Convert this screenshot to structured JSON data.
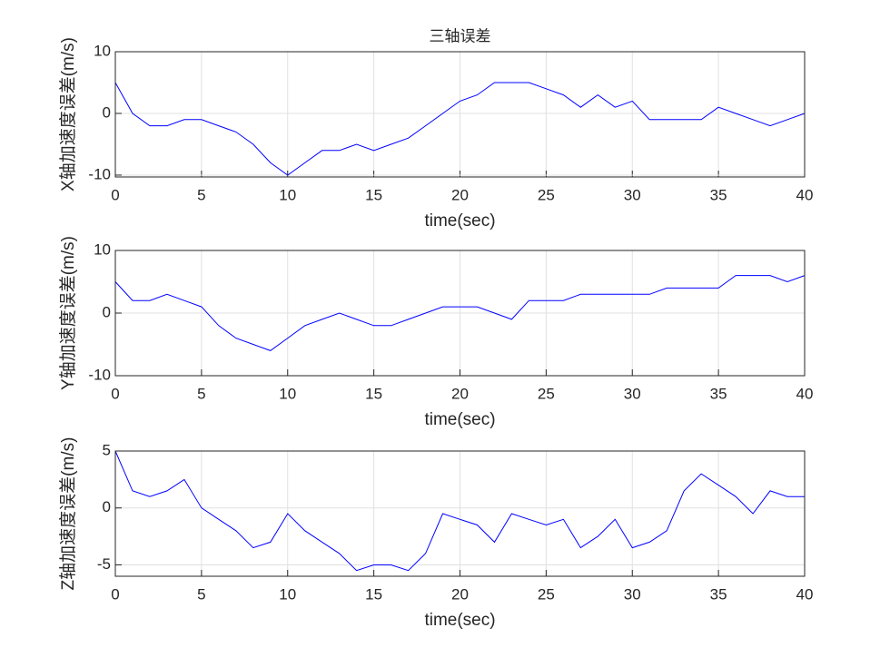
{
  "chart_data": [
    {
      "type": "line",
      "title": "三轴误差",
      "ylabel": "X轴加速度误差(m/s)",
      "xlabel": "time(sec)",
      "color": "#0000ff",
      "grid": true,
      "x": [
        0,
        1,
        2,
        3,
        4,
        5,
        6,
        7,
        8,
        9,
        10,
        11,
        12,
        13,
        14,
        15,
        16,
        17,
        18,
        19,
        20,
        21,
        22,
        23,
        24,
        25,
        26,
        27,
        28,
        29,
        30,
        31,
        32,
        33,
        34,
        35,
        36,
        37,
        38,
        39,
        40
      ],
      "values": [
        5,
        0,
        -2,
        -2,
        -1,
        -1,
        -2,
        -3,
        -5,
        -8,
        -10,
        -8,
        -6,
        -6,
        -5,
        -6,
        -5,
        -4,
        -2,
        0,
        2,
        3,
        5,
        5,
        5,
        4,
        3,
        1,
        3,
        1,
        2,
        -1,
        -1,
        -1,
        -1,
        1,
        0,
        -1,
        -2,
        -1,
        0
      ],
      "xlim": [
        0,
        40
      ],
      "xticks": [
        0,
        5,
        10,
        15,
        20,
        25,
        30,
        35,
        40
      ],
      "ylim": [
        -10.3,
        10
      ],
      "yticks": [
        -10,
        0,
        10
      ]
    },
    {
      "type": "line",
      "ylabel": "Y轴加速度误差(m/s)",
      "xlabel": "time(sec)",
      "color": "#0000ff",
      "grid": true,
      "x": [
        0,
        1,
        2,
        3,
        4,
        5,
        6,
        7,
        8,
        9,
        10,
        11,
        12,
        13,
        14,
        15,
        16,
        17,
        18,
        19,
        20,
        21,
        22,
        23,
        24,
        25,
        26,
        27,
        28,
        29,
        30,
        31,
        32,
        33,
        34,
        35,
        36,
        37,
        38,
        39,
        40
      ],
      "values": [
        5,
        2,
        2,
        3,
        2,
        1,
        -2,
        -4,
        -5,
        -6,
        -4,
        -2,
        -1,
        0,
        -1,
        -2,
        -2,
        -1,
        0,
        1,
        1,
        1,
        0,
        -1,
        2,
        2,
        2,
        3,
        3,
        3,
        3,
        3,
        4,
        4,
        4,
        4,
        6,
        6,
        6,
        5,
        6
      ],
      "xlim": [
        0,
        40
      ],
      "xticks": [
        0,
        5,
        10,
        15,
        20,
        25,
        30,
        35,
        40
      ],
      "ylim": [
        -10,
        10
      ],
      "yticks": [
        -10,
        0,
        10
      ]
    },
    {
      "type": "line",
      "ylabel": "Z轴加速度误差(m/s)",
      "xlabel": "time(sec)",
      "color": "#0000ff",
      "grid": true,
      "x": [
        0,
        1,
        2,
        3,
        4,
        5,
        6,
        7,
        8,
        9,
        10,
        11,
        12,
        13,
        14,
        15,
        16,
        17,
        18,
        19,
        20,
        21,
        22,
        23,
        24,
        25,
        26,
        27,
        28,
        29,
        30,
        31,
        32,
        33,
        34,
        35,
        36,
        37,
        38,
        39,
        40
      ],
      "values": [
        5,
        1.5,
        1,
        1.5,
        2.5,
        0,
        -1,
        -2,
        -3.5,
        -3,
        -0.5,
        -2,
        -3,
        -4,
        -5.5,
        -5,
        -5,
        -5.5,
        -4,
        -0.5,
        -1,
        -1.5,
        -3,
        -0.5,
        -1,
        -1.5,
        -1,
        -3.5,
        -2.5,
        -1,
        -3.5,
        -3,
        -2,
        1.5,
        3,
        2,
        1,
        -0.5,
        1.5,
        1,
        1
      ],
      "xlim": [
        0,
        40
      ],
      "xticks": [
        0,
        5,
        10,
        15,
        20,
        25,
        30,
        35,
        40
      ],
      "ylim": [
        -6,
        5
      ],
      "yticks": [
        -5,
        0,
        5
      ]
    }
  ]
}
